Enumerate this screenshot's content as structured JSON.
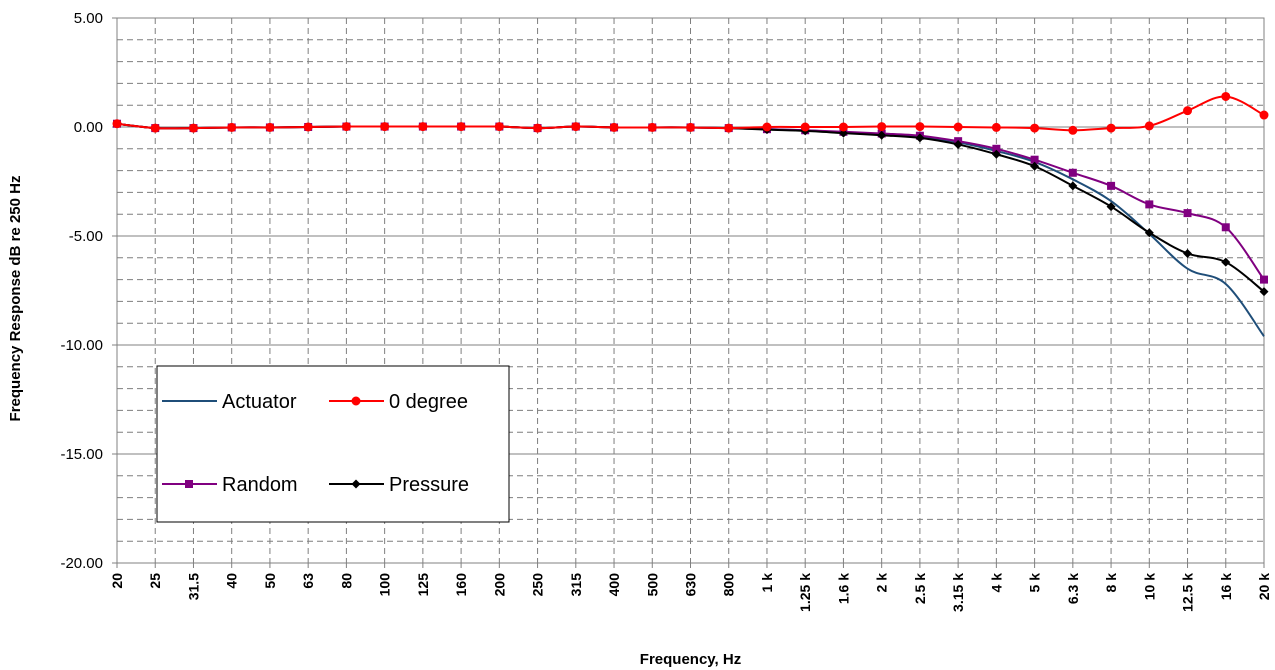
{
  "chart_data": {
    "type": "line",
    "title": "",
    "xlabel": "Frequency, Hz",
    "ylabel": "Frequency Response dB re 250 Hz",
    "ylim": [
      -20,
      5
    ],
    "y_ticks": [
      "5.00",
      "0.00",
      "-5.00",
      "-10.00",
      "-15.00",
      "-20.00"
    ],
    "grid": true,
    "legend_position": "lower-left",
    "categories": [
      "20",
      "25",
      "31.5",
      "40",
      "50",
      "63",
      "80",
      "100",
      "125",
      "160",
      "200",
      "250",
      "315",
      "400",
      "500",
      "630",
      "800",
      "1 k",
      "1.25 k",
      "1.6 k",
      "2 k",
      "2.5 k",
      "3.15 k",
      "4 k",
      "5 k",
      "6.3 k",
      "8 k",
      "10 k",
      "12.5 k",
      "16 k",
      "20 k"
    ],
    "series": [
      {
        "name": "Actuator",
        "color": "#1f4e79",
        "marker": "none",
        "values": [
          0.15,
          -0.05,
          -0.05,
          -0.02,
          -0.02,
          0.0,
          0.02,
          0.02,
          0.02,
          0.02,
          0.02,
          -0.05,
          0.02,
          -0.02,
          -0.02,
          -0.02,
          -0.05,
          -0.1,
          -0.15,
          -0.25,
          -0.35,
          -0.45,
          -0.7,
          -1.1,
          -1.6,
          -2.4,
          -3.4,
          -4.9,
          -6.5,
          -7.2,
          -9.6
        ]
      },
      {
        "name": "0 degree",
        "color": "#ff0000",
        "marker": "circle",
        "values": [
          0.15,
          -0.05,
          -0.05,
          -0.02,
          -0.02,
          0.0,
          0.02,
          0.02,
          0.02,
          0.02,
          0.02,
          -0.05,
          0.02,
          -0.02,
          -0.02,
          -0.02,
          -0.05,
          0.0,
          0.0,
          0.0,
          0.02,
          0.02,
          0.0,
          -0.02,
          -0.05,
          -0.15,
          -0.05,
          0.05,
          0.75,
          1.4,
          0.55
        ]
      },
      {
        "name": "Random",
        "color": "#800080",
        "marker": "square",
        "values": [
          0.15,
          -0.05,
          -0.05,
          -0.02,
          -0.02,
          0.0,
          0.02,
          0.02,
          0.02,
          0.02,
          0.02,
          -0.05,
          0.02,
          -0.02,
          -0.02,
          -0.02,
          -0.05,
          -0.1,
          -0.15,
          -0.22,
          -0.3,
          -0.4,
          -0.65,
          -1.0,
          -1.5,
          -2.1,
          -2.7,
          -3.55,
          -3.95,
          -4.6,
          -7.0
        ]
      },
      {
        "name": "Pressure",
        "color": "#000000",
        "marker": "diamond",
        "values": [
          0.15,
          -0.05,
          -0.05,
          -0.02,
          -0.02,
          0.0,
          0.02,
          0.02,
          0.02,
          0.02,
          0.02,
          -0.05,
          0.02,
          -0.02,
          -0.02,
          -0.02,
          -0.05,
          -0.12,
          -0.18,
          -0.28,
          -0.38,
          -0.5,
          -0.8,
          -1.25,
          -1.8,
          -2.7,
          -3.65,
          -4.85,
          -5.8,
          -6.2,
          -7.55
        ]
      }
    ]
  }
}
